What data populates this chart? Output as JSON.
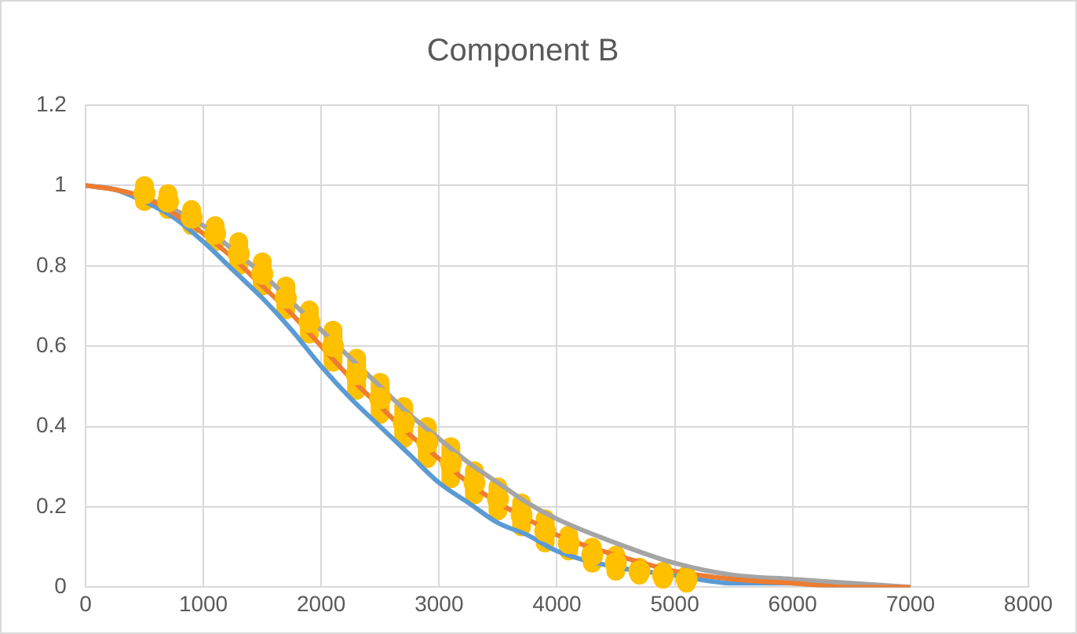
{
  "chart_data": {
    "type": "line",
    "title": "Component B",
    "x": [
      0,
      250,
      500,
      750,
      1000,
      1250,
      1500,
      1750,
      2000,
      2250,
      2500,
      2750,
      3000,
      3250,
      3500,
      3750,
      4000,
      4500,
      5000,
      5500,
      6000,
      6500,
      7000
    ],
    "series": [
      {
        "color": "#5b9bd5",
        "marker": "none",
        "values": [
          1,
          0.99,
          0.96,
          0.92,
          0.86,
          0.79,
          0.72,
          0.64,
          0.55,
          0.47,
          0.4,
          0.33,
          0.26,
          0.21,
          0.16,
          0.13,
          0.09,
          0.05,
          0.03,
          0.01,
          0.01,
          0,
          0
        ]
      },
      {
        "color": "#a5a5a5",
        "marker": "none",
        "values": [
          1,
          0.99,
          0.97,
          0.94,
          0.9,
          0.84,
          0.78,
          0.71,
          0.64,
          0.57,
          0.5,
          0.43,
          0.37,
          0.31,
          0.26,
          0.21,
          0.17,
          0.11,
          0.06,
          0.03,
          0.02,
          0.01,
          0
        ]
      },
      {
        "type": "scatter",
        "color": "#ffc000",
        "marker": "circle",
        "x": [
          500,
          700,
          900,
          1100,
          1300,
          1500,
          1700,
          1900,
          2100,
          2300,
          2500,
          2700,
          2900,
          3100,
          3300,
          3500,
          3700,
          3900,
          4100,
          4300,
          4500,
          4700,
          4900,
          5100
        ],
        "values": [
          0.98,
          0.96,
          0.92,
          0.88,
          0.83,
          0.78,
          0.72,
          0.66,
          0.6,
          0.53,
          0.47,
          0.41,
          0.36,
          0.31,
          0.26,
          0.22,
          0.18,
          0.14,
          0.11,
          0.08,
          0.06,
          0.04,
          0.03,
          0.02
        ],
        "errors": [
          0.02,
          0.02,
          0.02,
          0.02,
          0.03,
          0.03,
          0.03,
          0.03,
          0.04,
          0.04,
          0.04,
          0.04,
          0.04,
          0.04,
          0.03,
          0.03,
          0.03,
          0.03,
          0.02,
          0.02,
          0.02,
          0.01,
          0.01,
          0.01
        ]
      },
      {
        "color": "#ed7d31",
        "marker": "none",
        "values": [
          1,
          0.99,
          0.97,
          0.93,
          0.88,
          0.82,
          0.75,
          0.68,
          0.6,
          0.52,
          0.45,
          0.38,
          0.32,
          0.26,
          0.21,
          0.17,
          0.13,
          0.08,
          0.04,
          0.02,
          0.01,
          0,
          0
        ]
      }
    ],
    "xlim": [
      0,
      8000
    ],
    "xticks": [
      0,
      1000,
      2000,
      3000,
      4000,
      5000,
      6000,
      7000,
      8000
    ],
    "ylim": [
      0,
      1.2
    ],
    "yticks": [
      0,
      0.2,
      0.4,
      0.6,
      0.8,
      1,
      1.2
    ],
    "grid": true,
    "legend": false
  }
}
